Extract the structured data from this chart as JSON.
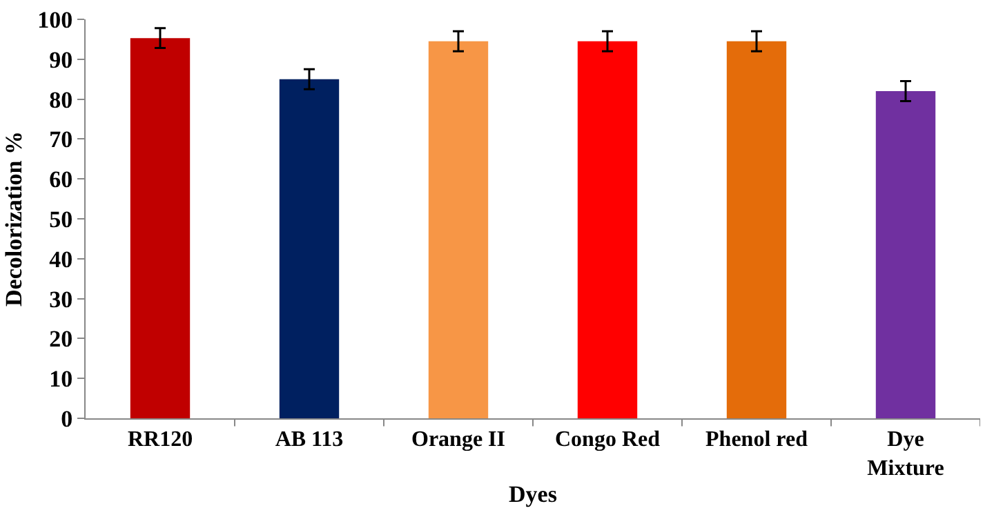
{
  "chart_data": {
    "type": "bar",
    "xlabel": "Dyes",
    "ylabel": "Decolorization %",
    "categories": [
      "RR120",
      "AB 113",
      "Orange II",
      "Congo Red",
      "Phenol red",
      "Dye Mixture"
    ],
    "values": [
      95.3,
      85,
      94.5,
      94.5,
      94.5,
      82
    ],
    "colors": [
      "#c00000",
      "#002060",
      "#f79646",
      "#ff0000",
      "#e46c0a",
      "#7030a0"
    ],
    "errors": [
      2.5,
      2.5,
      2.5,
      2.5,
      2.5,
      2.5
    ],
    "ylim": [
      0,
      100
    ],
    "yticks": [
      0,
      10,
      20,
      30,
      40,
      50,
      60,
      70,
      80,
      90,
      100
    ],
    "grid": false
  }
}
